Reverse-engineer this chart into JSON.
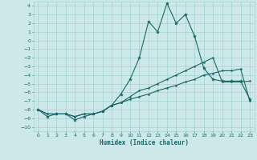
{
  "xlabel": "Humidex (Indice chaleur)",
  "bg_color": "#cce8e8",
  "grid_color": "#99cccc",
  "line_color": "#1a6666",
  "xlim": [
    -0.5,
    23.5
  ],
  "ylim": [
    -10.5,
    4.5
  ],
  "xticks": [
    0,
    1,
    2,
    3,
    4,
    5,
    6,
    7,
    8,
    9,
    10,
    11,
    12,
    13,
    14,
    15,
    16,
    17,
    18,
    19,
    20,
    21,
    22,
    23
  ],
  "yticks": [
    4,
    3,
    2,
    1,
    0,
    -1,
    -2,
    -3,
    -4,
    -5,
    -6,
    -7,
    -8,
    -9,
    -10
  ],
  "series1_x": [
    0,
    1,
    2,
    3,
    4,
    5,
    6,
    7,
    8,
    9,
    10,
    11,
    12,
    13,
    14,
    15,
    16,
    17,
    18,
    19,
    20,
    21,
    22,
    23
  ],
  "series1_y": [
    -8.0,
    -8.8,
    -8.5,
    -8.5,
    -9.2,
    -8.8,
    -8.5,
    -8.2,
    -7.5,
    -6.2,
    -4.5,
    -2.0,
    2.2,
    1.0,
    4.3,
    2.0,
    3.0,
    0.5,
    -3.2,
    -4.5,
    -4.7,
    -4.7,
    -4.7,
    -6.8
  ],
  "series2_x": [
    0,
    1,
    2,
    3,
    4,
    5,
    6,
    7,
    8,
    9,
    10,
    11,
    12,
    13,
    14,
    15,
    16,
    17,
    18,
    19,
    20,
    21,
    22,
    23
  ],
  "series2_y": [
    -8.0,
    -8.5,
    -8.5,
    -8.5,
    -8.8,
    -8.5,
    -8.5,
    -8.2,
    -7.5,
    -7.2,
    -6.5,
    -5.8,
    -5.5,
    -5.0,
    -4.5,
    -4.0,
    -3.5,
    -3.0,
    -2.5,
    -2.0,
    -4.8,
    -4.8,
    -4.8,
    -4.7
  ],
  "series3_x": [
    0,
    1,
    2,
    3,
    4,
    5,
    6,
    7,
    8,
    9,
    10,
    11,
    12,
    13,
    14,
    15,
    16,
    17,
    18,
    19,
    20,
    21,
    22,
    23
  ],
  "series3_y": [
    -8.0,
    -8.5,
    -8.5,
    -8.5,
    -8.8,
    -8.5,
    -8.5,
    -8.2,
    -7.5,
    -7.2,
    -6.8,
    -6.5,
    -6.2,
    -5.8,
    -5.5,
    -5.2,
    -4.8,
    -4.5,
    -4.0,
    -3.8,
    -3.5,
    -3.5,
    -3.3,
    -7.0
  ]
}
